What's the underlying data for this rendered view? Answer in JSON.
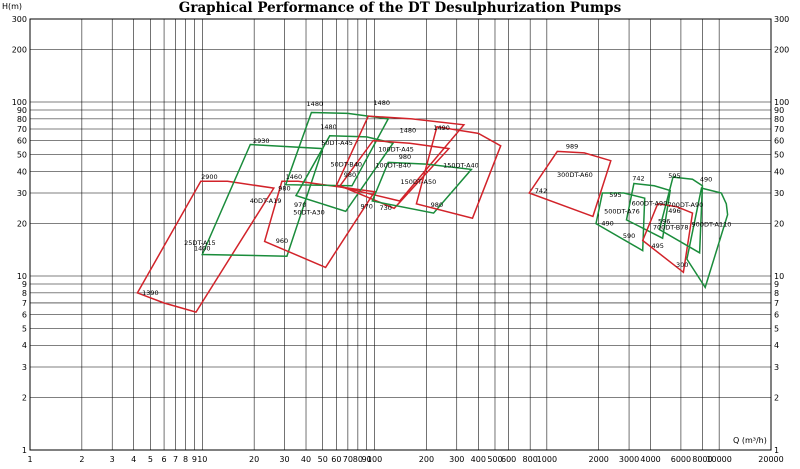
{
  "title": "Graphical Performance of the DT Desulphurization Pumps",
  "ylabel": "H(m)",
  "xlabel_prefix": "Q",
  "xlabel_unit": "(m³/h)",
  "colors": {
    "red": "#d2232a",
    "green": "#1a8c3b",
    "grid": "#000000"
  },
  "chart_data": {
    "type": "area",
    "title": "Graphical Performance of the DT Desulphurization Pumps",
    "xscale": "log",
    "yscale": "log",
    "xlim": [
      1,
      20000
    ],
    "ylim": [
      1,
      300
    ],
    "xlabel": "Q(m³/h)",
    "ylabel": "H(m)",
    "grid": true,
    "x_tick_labels": [
      "1",
      "2",
      "3",
      "4",
      "5",
      "6",
      "7",
      "8",
      "9",
      "10",
      "20",
      "30",
      "40",
      "50",
      "60",
      "70",
      "80",
      "90",
      "100",
      "200",
      "300",
      "400",
      "500",
      "600",
      "800",
      "1000",
      "2000",
      "3000",
      "4000",
      "6000",
      "8000",
      "10000",
      "20000"
    ],
    "x_ticks": [
      1,
      2,
      3,
      4,
      5,
      6,
      7,
      8,
      9,
      10,
      20,
      30,
      40,
      50,
      60,
      70,
      80,
      90,
      100,
      200,
      300,
      400,
      500,
      600,
      800,
      1000,
      2000,
      3000,
      4000,
      6000,
      8000,
      10000,
      20000
    ],
    "y_tick_labels": [
      "1",
      "2",
      "3",
      "4",
      "5",
      "6",
      "7",
      "8",
      "9",
      "10",
      "20",
      "30",
      "40",
      "50",
      "60",
      "70",
      "80",
      "90",
      "100",
      "200",
      "300"
    ],
    "y_ticks": [
      1,
      2,
      3,
      4,
      5,
      6,
      7,
      8,
      9,
      10,
      20,
      30,
      40,
      50,
      60,
      70,
      80,
      90,
      100,
      200,
      300
    ],
    "series": [
      {
        "name": "25DT-A15",
        "color": "red",
        "polygon": [
          [
            9.8,
            35
          ],
          [
            14,
            35
          ],
          [
            26,
            32
          ],
          [
            9.2,
            6.2
          ],
          [
            6,
            7
          ],
          [
            4.2,
            8
          ]
        ]
      },
      {
        "name": "40DT-A19",
        "color": "green",
        "polygon": [
          [
            19,
            57
          ],
          [
            50,
            54
          ],
          [
            31,
            13
          ],
          [
            10,
            13.3
          ]
        ]
      },
      {
        "name": "50DT-A30",
        "color": "red",
        "polygon": [
          [
            29,
            35
          ],
          [
            36,
            35
          ],
          [
            100,
            30.5
          ],
          [
            52,
            11.2
          ],
          [
            23,
            15.8
          ]
        ]
      },
      {
        "name": "50DT-A45",
        "color": "green",
        "polygon": [
          [
            43,
            87
          ],
          [
            70,
            86
          ],
          [
            120,
            80
          ],
          [
            74,
            33
          ],
          [
            30.5,
            33.5
          ]
        ]
      },
      {
        "name": "50DT-B40",
        "color": "green",
        "polygon": [
          [
            55,
            64
          ],
          [
            90,
            63
          ],
          [
            128,
            58
          ],
          [
            68,
            23.5
          ],
          [
            35,
            29
          ]
        ]
      },
      {
        "name": "100DT-A45",
        "color": "red",
        "polygon": [
          [
            92,
            83
          ],
          [
            165,
            80
          ],
          [
            330,
            74
          ],
          [
            140,
            27
          ],
          [
            60,
            33
          ]
        ]
      },
      {
        "name": "100DT-B40",
        "color": "red",
        "polygon": [
          [
            98,
            60
          ],
          [
            160,
            58
          ],
          [
            270,
            54
          ],
          [
            130,
            24.5
          ],
          [
            63,
            33
          ]
        ]
      },
      {
        "name": "150DT-A50",
        "color": "green",
        "polygon": [
          [
            120,
            45
          ],
          [
            200,
            44
          ],
          [
            365,
            41
          ],
          [
            220,
            23
          ],
          [
            97,
            27
          ]
        ]
      },
      {
        "name": "150DT-A40",
        "color": "red",
        "polygon": [
          [
            230,
            72
          ],
          [
            400,
            66
          ],
          [
            540,
            56
          ],
          [
            370,
            21.5
          ],
          [
            175,
            26
          ]
        ]
      },
      {
        "name": "300DT-A60",
        "color": "red",
        "polygon": [
          [
            1150,
            52
          ],
          [
            1650,
            51
          ],
          [
            2350,
            46
          ],
          [
            1850,
            22
          ],
          [
            790,
            30
          ]
        ]
      },
      {
        "name": "500DT-A76",
        "color": "green",
        "polygon": [
          [
            2100,
            30
          ],
          [
            2800,
            30
          ],
          [
            3700,
            28
          ],
          [
            3600,
            14
          ],
          [
            1930,
            20
          ]
        ]
      },
      {
        "name": "600DT-A90",
        "color": "green",
        "polygon": [
          [
            3200,
            34
          ],
          [
            4200,
            33
          ],
          [
            5200,
            31
          ],
          [
            4700,
            16.5
          ],
          [
            2900,
            21
          ]
        ]
      },
      {
        "name": "700DT-B78",
        "color": "red",
        "polygon": [
          [
            4400,
            26
          ],
          [
            5700,
            25
          ],
          [
            7000,
            23
          ],
          [
            6200,
            10.5
          ],
          [
            3600,
            16
          ]
        ]
      },
      {
        "name": "700DT-A90",
        "color": "green",
        "polygon": [
          [
            5400,
            37
          ],
          [
            7000,
            36
          ],
          [
            8000,
            33
          ],
          [
            7700,
            13.6
          ],
          [
            4500,
            18.5
          ]
        ]
      },
      {
        "name": "900DT-A110",
        "color": "green",
        "polygon": [
          [
            7900,
            32
          ],
          [
            10300,
            30
          ],
          [
            11000,
            26
          ],
          [
            11200,
            22.5
          ],
          [
            8300,
            8.6
          ],
          [
            6500,
            12.5
          ]
        ]
      }
    ],
    "annotations": [
      {
        "text": "2900",
        "x": 11,
        "y": 36
      },
      {
        "text": "1390",
        "x": 5,
        "y": 7.8
      },
      {
        "text": "2930",
        "x": 22,
        "y": 58
      },
      {
        "text": "1400",
        "x": 10,
        "y": 14
      },
      {
        "text": "1460",
        "x": 34,
        "y": 36
      },
      {
        "text": "980",
        "x": 30,
        "y": 31
      },
      {
        "text": "970",
        "x": 37,
        "y": 25
      },
      {
        "text": "960",
        "x": 29,
        "y": 15.5
      },
      {
        "text": "1480",
        "x": 45,
        "y": 95
      },
      {
        "text": "1480",
        "x": 54,
        "y": 70
      },
      {
        "text": "980",
        "x": 72,
        "y": 37
      },
      {
        "text": "970",
        "x": 90,
        "y": 24.5
      },
      {
        "text": "730",
        "x": 116,
        "y": 24
      },
      {
        "text": "1480",
        "x": 110,
        "y": 96
      },
      {
        "text": "1480",
        "x": 156,
        "y": 67
      },
      {
        "text": "980",
        "x": 150,
        "y": 47
      },
      {
        "text": "980",
        "x": 230,
        "y": 25
      },
      {
        "text": "1490",
        "x": 245,
        "y": 69
      },
      {
        "text": "989",
        "x": 1400,
        "y": 54
      },
      {
        "text": "742",
        "x": 925,
        "y": 30
      },
      {
        "text": "595",
        "x": 2500,
        "y": 28.5
      },
      {
        "text": "742",
        "x": 3400,
        "y": 35.5
      },
      {
        "text": "490",
        "x": 2250,
        "y": 19.5
      },
      {
        "text": "590",
        "x": 3000,
        "y": 16.5
      },
      {
        "text": "495",
        "x": 4400,
        "y": 14.5
      },
      {
        "text": "595",
        "x": 5500,
        "y": 36.5
      },
      {
        "text": "496",
        "x": 5500,
        "y": 23
      },
      {
        "text": "596",
        "x": 4800,
        "y": 20
      },
      {
        "text": "300",
        "x": 6100,
        "y": 11.3
      },
      {
        "text": "490",
        "x": 8400,
        "y": 35
      }
    ]
  }
}
